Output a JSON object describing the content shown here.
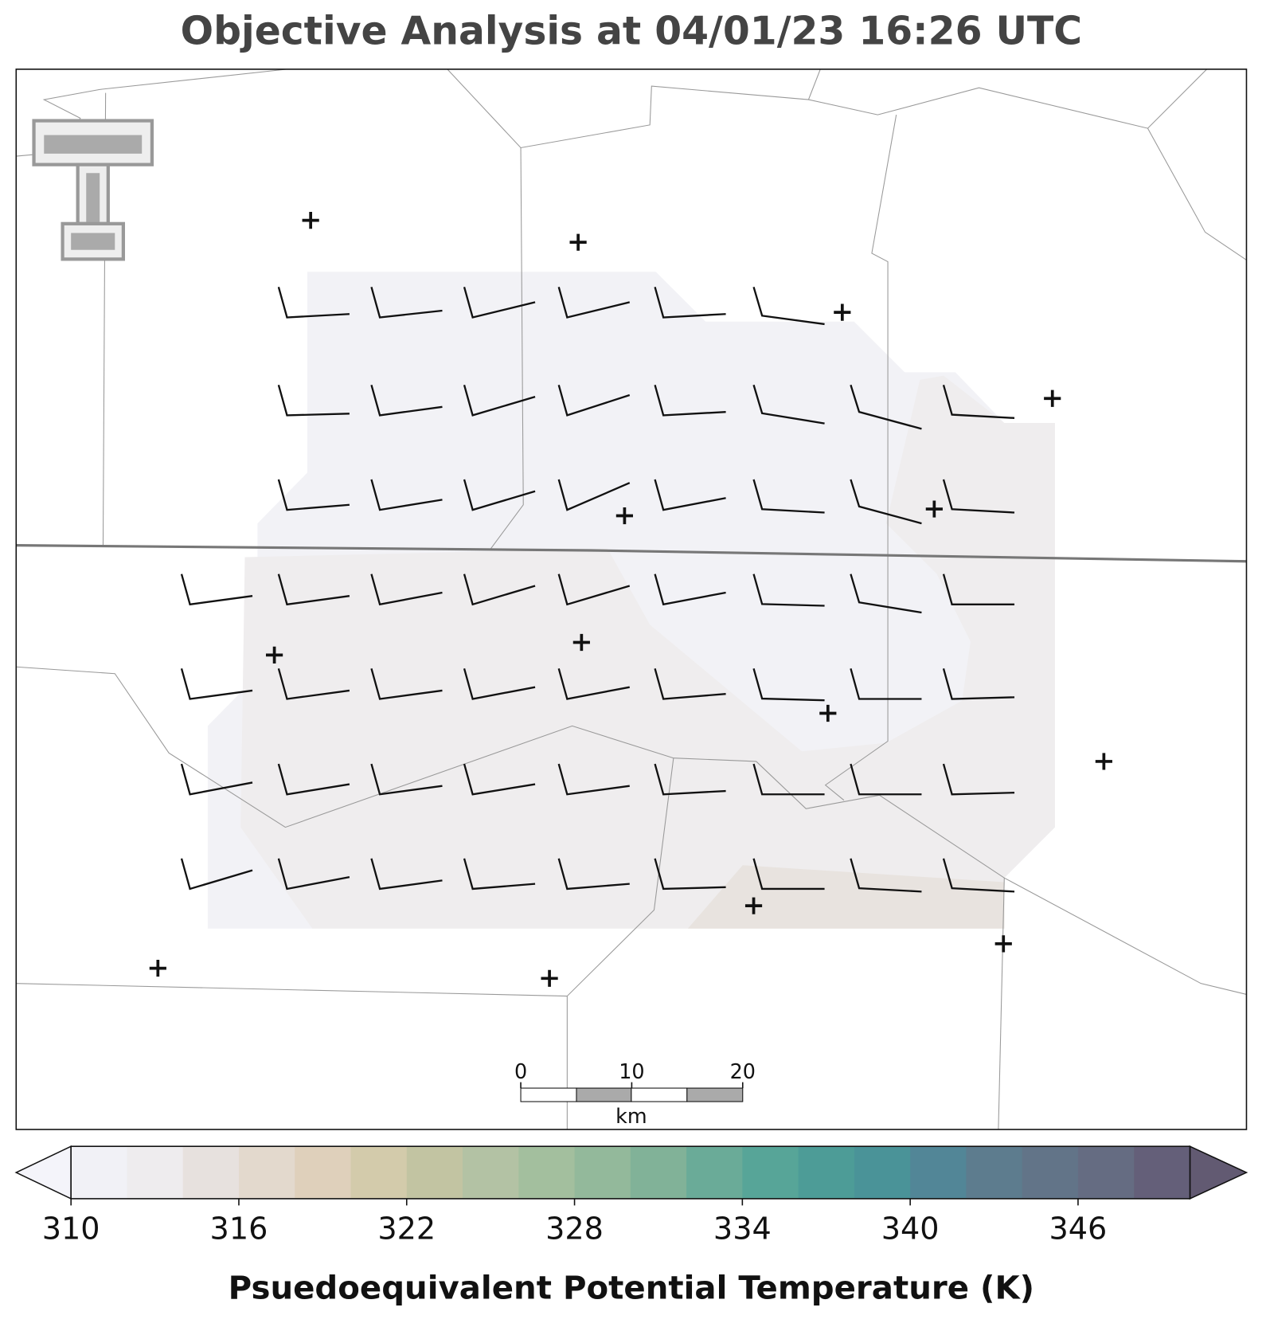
{
  "header": {
    "title": "Objective Analysis at 04/01/23 16:26 UTC"
  },
  "scale_bar": {
    "ticks": [
      0,
      10,
      20
    ],
    "unit": "km"
  },
  "colorbar": {
    "label": "Psuedoequivalent Potential Temperature (K)",
    "ticks": [
      310,
      316,
      322,
      328,
      334,
      340,
      346
    ],
    "levels": [
      310,
      312,
      314,
      316,
      318,
      320,
      322,
      324,
      326,
      328,
      330,
      332,
      334,
      336,
      338,
      340,
      342,
      344,
      346,
      348,
      350
    ],
    "colors": [
      "#f1f1f6",
      "#eeecee",
      "#e7e1de",
      "#e3d9cd",
      "#dfd0bb",
      "#d3cbab",
      "#c2c4a2",
      "#b3c2a4",
      "#a3bf9e",
      "#93b99b",
      "#81b298",
      "#6aab98",
      "#57a598",
      "#4d9c97",
      "#4a9398",
      "#528697",
      "#5d7c8e",
      "#627488",
      "#656c82",
      "#645f79"
    ],
    "under_color": "#f4f4fa",
    "over_color": "#625a72"
  }
}
